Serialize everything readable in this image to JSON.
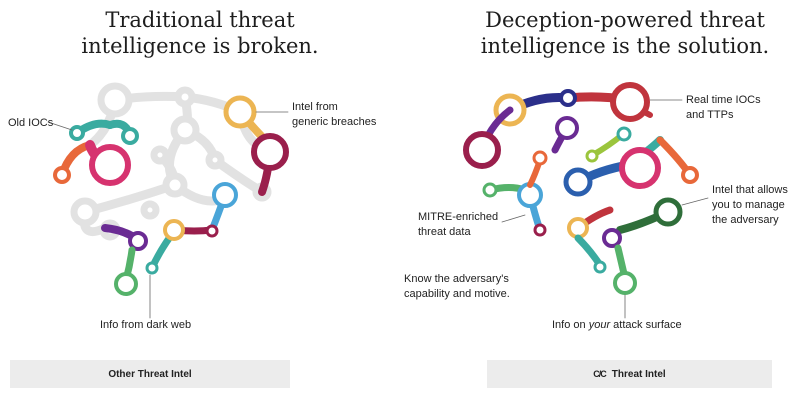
{
  "left": {
    "title_line1": "Traditional threat",
    "title_line2": "intelligence is broken.",
    "labels": {
      "old_iocs": "Old IOCs",
      "intel_generic_1": "Intel from",
      "intel_generic_2": "generic breaches",
      "dark_web": "Info from dark web"
    },
    "footer": "Other Threat Intel"
  },
  "right": {
    "title_line1": "Deception-powered threat",
    "title_line2": "intelligence is the solution.",
    "labels": {
      "realtime_1": "Real time IOCs",
      "realtime_2": "and TTPs",
      "manage_1": "Intel that allows",
      "manage_2": "you to manage",
      "manage_3": "the adversary",
      "mitre_1": "MITRE-enriched",
      "mitre_2": "threat data",
      "know_1": "Know the adversary's",
      "know_2": "capability and motive.",
      "attack_pre": "Info on ",
      "attack_em": "your",
      "attack_post": " attack surface"
    },
    "footer": "Threat Intel",
    "footer_logo": "C/C"
  },
  "colors": {
    "grey": "#e2e2e2",
    "teal": "#3aaba0",
    "orange": "#e8683a",
    "pink": "#d6336f",
    "yellow": "#ecb553",
    "maroon": "#9a1f4c",
    "blue": "#4aa5d8",
    "purple": "#6a2b93",
    "green": "#55b26a",
    "red": "#c0343d",
    "navy": "#2b2f8a",
    "lime": "#9bc53d",
    "darkgreen": "#2f6e3a",
    "royal": "#2b5fae"
  }
}
